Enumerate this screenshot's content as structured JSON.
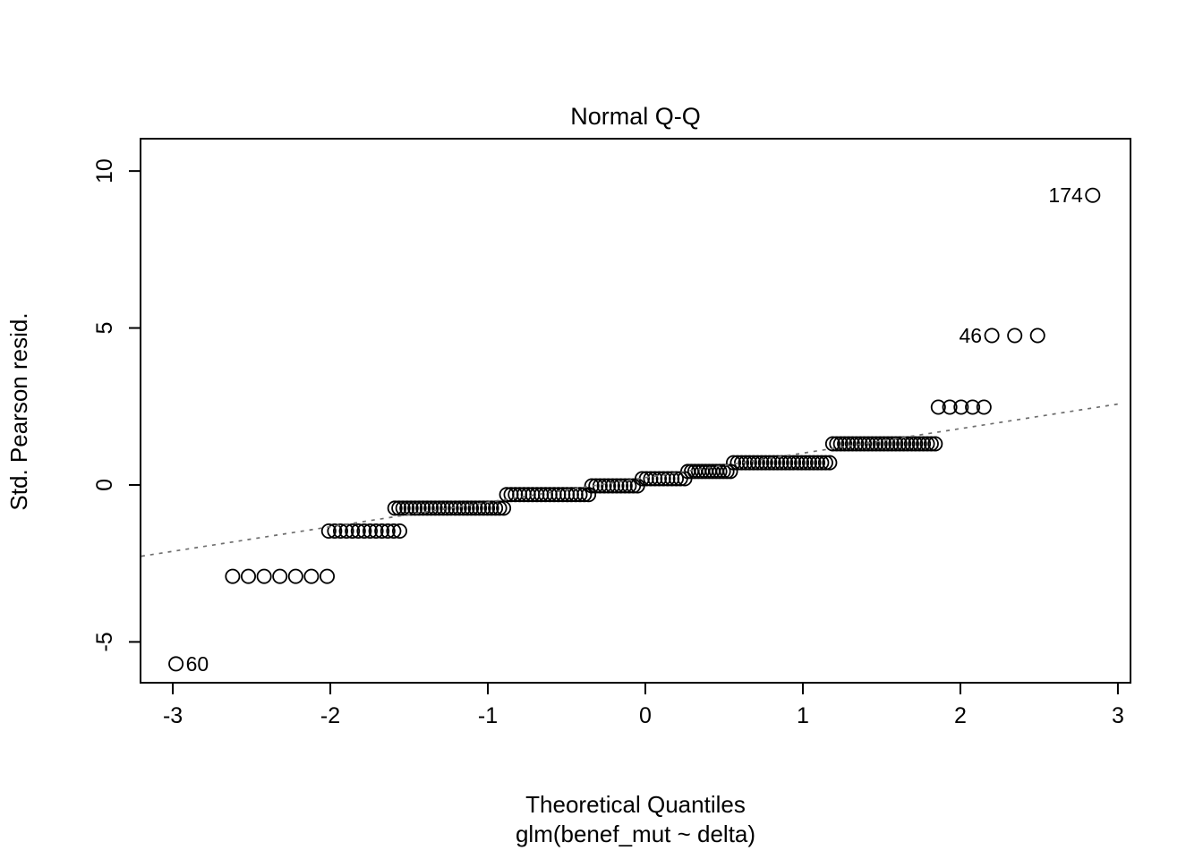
{
  "chart_data": {
    "type": "scatter",
    "title": "Normal Q-Q",
    "xlabel": "Theoretical Quantiles",
    "xlabel_sub": "glm(benef_mut ~ delta)",
    "ylabel": "Std. Pearson resid.",
    "xlim": [
      -3.205,
      3.08
    ],
    "ylim": [
      -6.3,
      11.03
    ],
    "x_ticks": [
      -3,
      -2,
      -1,
      0,
      1,
      2,
      3
    ],
    "y_ticks": [
      -5,
      0,
      5,
      10
    ],
    "grid": false,
    "legend": false,
    "marker": "open-circle",
    "marker_color": "#000000",
    "reference_line": {
      "style": "dotted",
      "color": "#6e6e6e",
      "x1": -3.2,
      "y1": -2.27,
      "x2": 3.03,
      "y2": 2.6
    },
    "point_bands": [
      {
        "y": -5.7,
        "x_start": -2.98,
        "x_end": -2.98,
        "n": 1,
        "label": "60",
        "label_side": "right"
      },
      {
        "y": -2.91,
        "x_start": -2.62,
        "x_end": -2.02,
        "n": 7
      },
      {
        "y": -1.47,
        "x_start": -2.01,
        "x_end": -1.56,
        "n": 13
      },
      {
        "y": -0.74,
        "x_start": -1.59,
        "x_end": -0.9,
        "n": 28
      },
      {
        "y": -0.31,
        "x_start": -0.88,
        "x_end": -0.36,
        "n": 20
      },
      {
        "y": -0.03,
        "x_start": -0.34,
        "x_end": -0.05,
        "n": 12
      },
      {
        "y": 0.2,
        "x_start": -0.02,
        "x_end": 0.25,
        "n": 11
      },
      {
        "y": 0.43,
        "x_start": 0.27,
        "x_end": 0.54,
        "n": 13
      },
      {
        "y": 0.71,
        "x_start": 0.56,
        "x_end": 1.17,
        "n": 25
      },
      {
        "y": 1.31,
        "x_start": 1.19,
        "x_end": 1.84,
        "n": 27
      },
      {
        "y": 2.48,
        "x_start": 1.86,
        "x_end": 2.15,
        "n": 5
      },
      {
        "y": 4.76,
        "x_start": 2.2,
        "x_end": 2.49,
        "n": 3,
        "label": "46",
        "label_side": "left"
      },
      {
        "y": 9.23,
        "x_start": 2.84,
        "x_end": 2.84,
        "n": 1,
        "label": "174",
        "label_side": "left"
      }
    ]
  }
}
